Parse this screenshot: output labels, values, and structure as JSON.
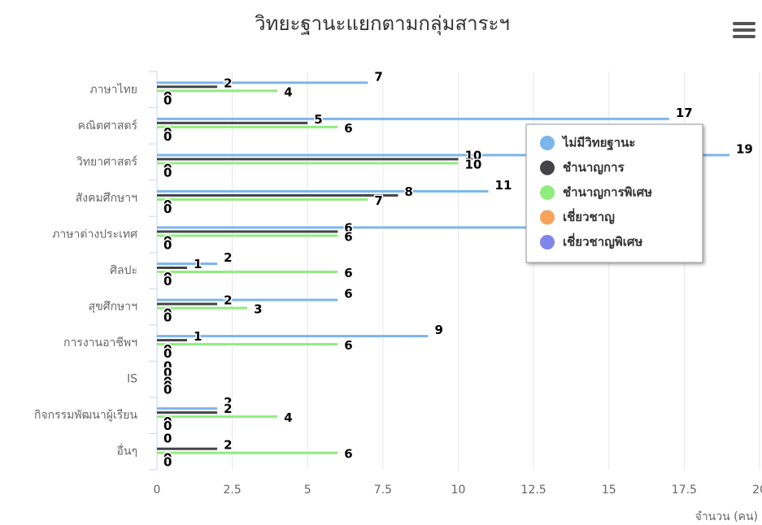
{
  "chart_data": {
    "type": "bar",
    "orientation": "horizontal",
    "title": "วิทยะฐานะแยกตามกลุ่มสาระฯ",
    "x_axis_label": "จำนวน (คน)",
    "categories": [
      "ภาษาไทย",
      "คณิตศาสตร์",
      "วิทยาศาสตร์",
      "สังคมศึกษาฯ",
      "ภาษาต่างประเทศ",
      "ศิลปะ",
      "สุขศึกษาฯ",
      "การงานอาชีพฯ",
      "IS",
      "กิจกรรมพัฒนาผู้เรียน",
      "อื่นๆ"
    ],
    "series": [
      {
        "name": "ไม่มีวิทยฐานะ",
        "color": "#7cb5ec",
        "values": [
          7,
          17,
          19,
          11,
          13,
          2,
          6,
          9,
          0,
          2,
          0
        ]
      },
      {
        "name": "ชำนาญการ",
        "color": "#434348",
        "values": [
          2,
          5,
          10,
          8,
          6,
          1,
          2,
          1,
          0,
          2,
          2
        ]
      },
      {
        "name": "ชำนาญการพิเศษ",
        "color": "#90ed7d",
        "values": [
          4,
          6,
          10,
          7,
          6,
          6,
          3,
          6,
          0,
          4,
          6
        ]
      },
      {
        "name": "เชี่ยวชาญ",
        "color": "#f7a35c",
        "values": [
          0,
          0,
          0,
          0,
          0,
          0,
          0,
          0,
          0,
          0,
          0
        ]
      },
      {
        "name": "เชี่ยวชาญพิเศษ",
        "color": "#8085e9",
        "values": [
          0,
          0,
          0,
          0,
          0,
          0,
          0,
          0,
          0,
          0,
          0
        ]
      }
    ],
    "xlim": [
      0,
      20
    ],
    "xticks": [
      0,
      2.5,
      5,
      7.5,
      10,
      12.5,
      15,
      17.5,
      20
    ],
    "grid": true,
    "legend": "upper right"
  }
}
